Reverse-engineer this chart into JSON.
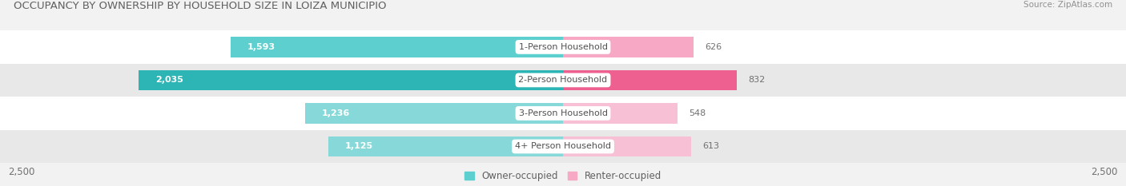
{
  "title": "OCCUPANCY BY OWNERSHIP BY HOUSEHOLD SIZE IN LOIZA MUNICIPIO",
  "source": "Source: ZipAtlas.com",
  "categories": [
    "1-Person Household",
    "2-Person Household",
    "3-Person Household",
    "4+ Person Household"
  ],
  "owner_values": [
    1593,
    2035,
    1236,
    1125
  ],
  "renter_values": [
    626,
    832,
    548,
    613
  ],
  "owner_colors": [
    "#5dcfcf",
    "#2db5b5",
    "#87d9d9",
    "#87d9d9"
  ],
  "renter_colors": [
    "#f7a8c4",
    "#ee6090",
    "#f7c0d4",
    "#f7c0d4"
  ],
  "axis_max": 2500,
  "axis_label": "2,500",
  "legend_owner": "Owner-occupied",
  "legend_renter": "Renter-occupied",
  "legend_owner_color": "#5dcfcf",
  "legend_renter_color": "#f7a8c4",
  "bg_color": "#f2f2f2",
  "row_colors": [
    "#ffffff",
    "#e8e8e8",
    "#ffffff",
    "#e8e8e8"
  ],
  "title_color": "#606060",
  "source_color": "#909090",
  "value_color_white": "#ffffff",
  "value_color_dark": "#707070",
  "category_label_color": "#505050",
  "title_fontsize": 9.5,
  "source_fontsize": 7.5,
  "bar_value_fontsize": 8,
  "category_fontsize": 8,
  "axis_tick_fontsize": 8.5,
  "legend_fontsize": 8.5
}
